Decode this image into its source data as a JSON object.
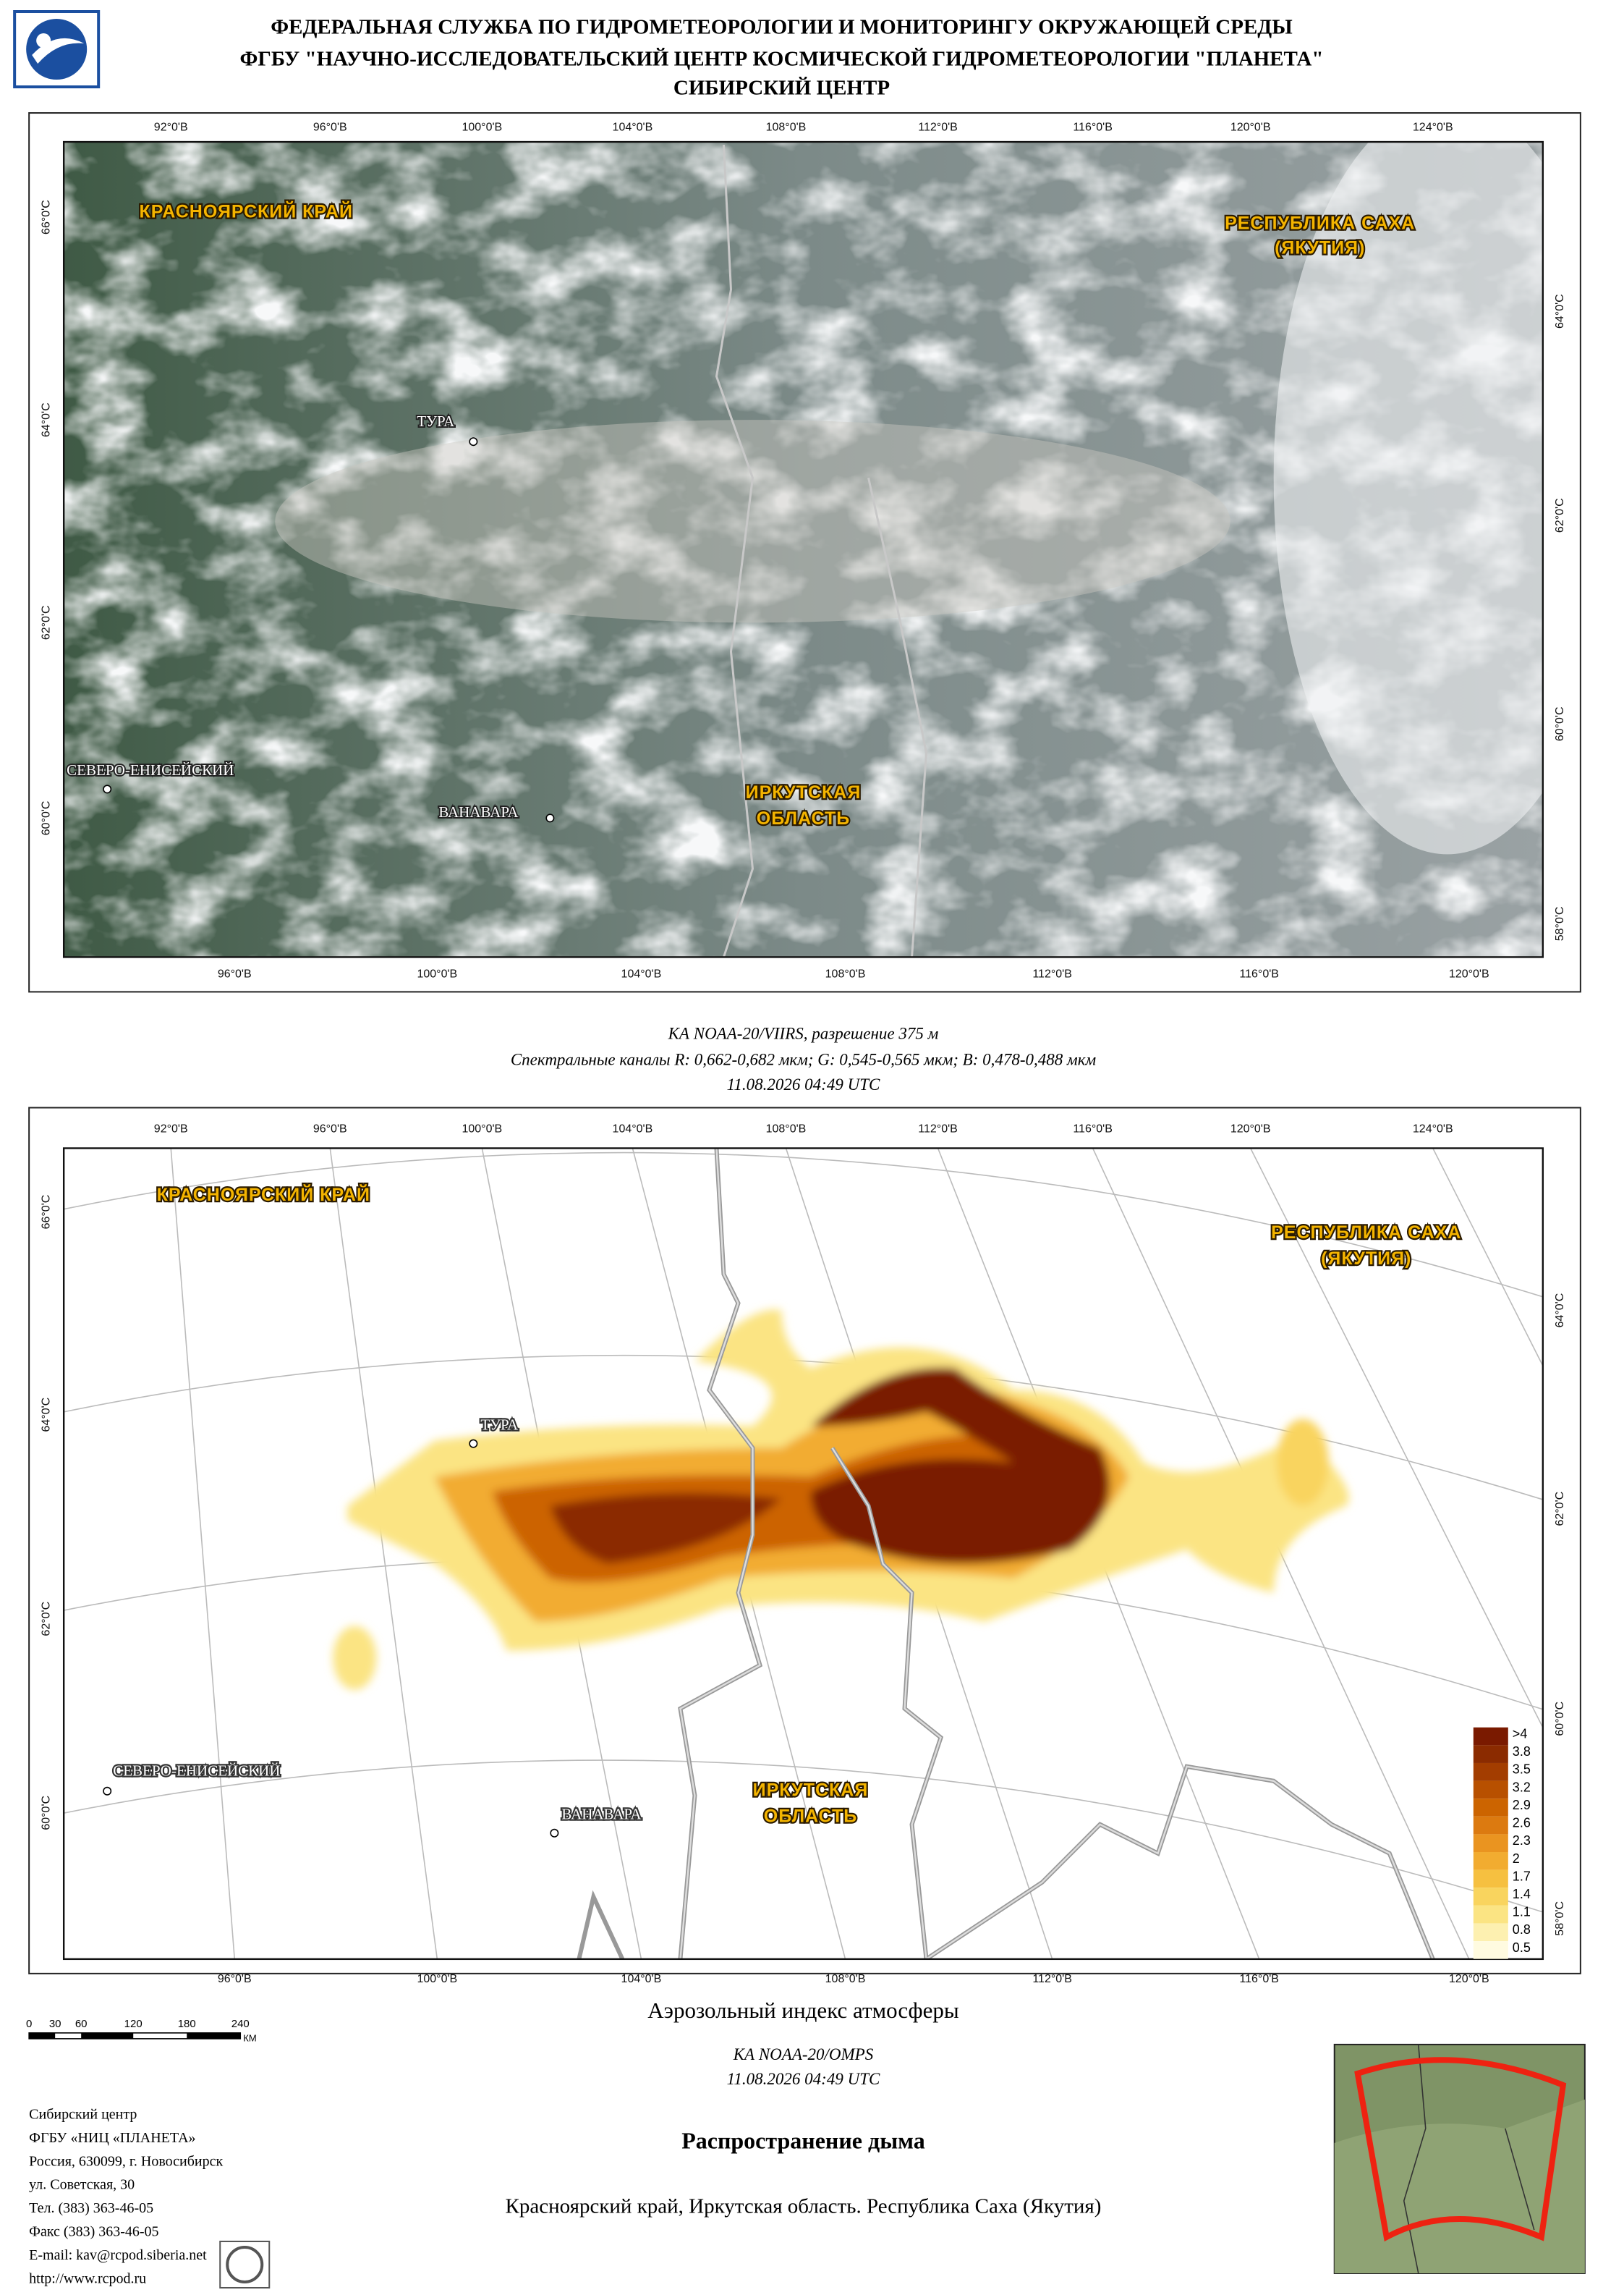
{
  "header": {
    "lines": [
      "ФЕДЕРАЛЬНАЯ СЛУЖБА ПО ГИДРОМЕТЕОРОЛОГИИ И МОНИТОРИНГУ ОКРУЖАЮЩЕЙ СРЕДЫ",
      "ФГБУ \"НАУЧНО-ИССЛЕДОВАТЕЛЬСКИЙ ЦЕНТР КОСМИЧЕСКОЙ ГИДРОМЕТЕОРОЛОГИИ \"ПЛАНЕТА\"",
      "СИБИРСКИЙ ЦЕНТР"
    ]
  },
  "grid": {
    "lon_top": [
      "92°0'В",
      "96°0'В",
      "100°0'В",
      "104°0'В",
      "108°0'В",
      "112°0'В",
      "116°0'В",
      "120°0'В",
      "124°0'В"
    ],
    "lon_bottom": [
      "96°0'В",
      "100°0'В",
      "104°0'В",
      "108°0'В",
      "112°0'В",
      "116°0'В",
      "120°0'В"
    ],
    "lat_left": [
      "66°0'С",
      "64°0'С",
      "62°0'С",
      "60°0'С"
    ],
    "lat_right": [
      "64°0'С",
      "62°0'С",
      "60°0'С",
      "58°0'С"
    ]
  },
  "places": {
    "regions": [
      [
        "КРАСНОЯРСКИЙ КРАЙ"
      ],
      [
        "РЕСПУБЛИКА САХА",
        "(ЯКУТИЯ)"
      ],
      [
        "ИРКУТСКАЯ",
        "ОБЛАСТЬ"
      ]
    ],
    "cities": [
      "ТУРА",
      "СЕВЕРО-ЕНИСЕЙСКИЙ",
      "ВАНАВАРА"
    ]
  },
  "image_caption": {
    "lines": [
      "КА NOAA-20/VIIRS, разрешение 375 м",
      "Спектральные каналы R: 0,662-0,682 мкм; G: 0,545-0,565 мкм; B: 0,478-0,488 мкм",
      "11.08.2026  04:49 UTC"
    ]
  },
  "legend": {
    "labels": [
      ">4",
      3.8,
      3.5,
      3.2,
      2.9,
      2.6,
      2.3,
      2,
      1.7,
      1.4,
      1.1,
      0.8,
      0.5
    ]
  },
  "product": {
    "title": "Аэрозольный индекс атмосферы",
    "lines": [
      "КА NOAA-20/OMPS",
      "11.08.2026  04:49 UTC"
    ]
  },
  "scale_bar": {
    "labels": [
      0,
      30,
      60,
      120,
      180,
      240
    ],
    "unit": "КМ"
  },
  "footer": {
    "contacts": [
      "Сибирский центр",
      "ФГБУ «НИЦ «ПЛАНЕТА»",
      "Россия, 630099, г. Новосибирск",
      "ул. Советская, 30",
      "Тел. (383) 363-46-05",
      "Факс (383) 363-46-05",
      "E-mail: kav@rcpod.siberia.net",
      "http://www.rcpod.ru"
    ],
    "title": "Распространение дыма",
    "subtitle": "Красноярский край, Иркутская область. Республика Саха (Якутия)"
  }
}
